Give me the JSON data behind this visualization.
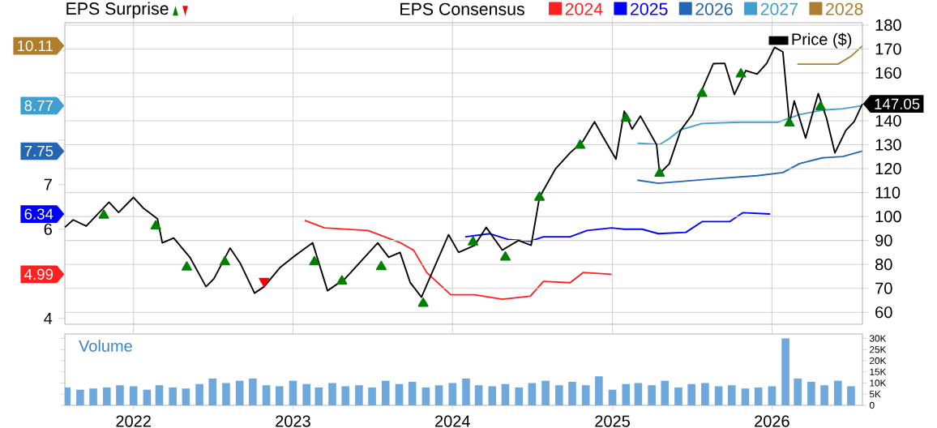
{
  "chart_data": [
    {
      "type": "line",
      "legend_title": "EPS Consensus",
      "annotations": [
        "EPS Surprise",
        "10.11",
        "8.77",
        "7.75",
        "6.34",
        "4.99"
      ],
      "xlim": [
        "2021-07-28",
        "2026-07-27"
      ],
      "xticks": [
        "2022",
        "2023",
        "2024",
        "2025",
        "2026"
      ],
      "ylim": [
        3.87,
        10.63
      ],
      "yticks": [
        4,
        {
          "value": 5,
          "label": null
        },
        6,
        7,
        {
          "value": 8,
          "label": null
        },
        {
          "value": 9,
          "label": null
        },
        {
          "value": 10,
          "label": null
        }
      ],
      "y2lim": [
        55,
        181
      ],
      "y2ticks": [
        60,
        70,
        80,
        90,
        100,
        110,
        120,
        130,
        140,
        {
          "value": 150,
          "label": null
        },
        160,
        170,
        180
      ],
      "grid": true,
      "legend": "top",
      "tick_labels": "y",
      "series": [
        {
          "name": "2024",
          "color": "#ff2020",
          "x": [
            "2023-01-28",
            "2023-03-14",
            "2023-06-22",
            "2023-09-03",
            "2023-10-04",
            "2023-11-03",
            "2023-12-28",
            "2024-02-21",
            "2024-04-24",
            "2024-06-27",
            "2024-07-27",
            "2024-09-26",
            "2024-10-26",
            "2024-12-30"
          ],
          "values": [
            6.2,
            6.03,
            5.97,
            5.7,
            5.53,
            5.03,
            4.53,
            4.53,
            4.43,
            4.5,
            4.83,
            4.8,
            5.03,
            4.99
          ]
        },
        {
          "name": "2025",
          "color": "#0000ff",
          "x": [
            "2024-01-30",
            "2024-03-27",
            "2024-05-07",
            "2024-06-27",
            "2024-07-27",
            "2024-09-26",
            "2024-11-04",
            "2024-12-30",
            "2025-01-28",
            "2025-03-10",
            "2025-04-16",
            "2025-06-18",
            "2025-07-25",
            "2025-09-26",
            "2025-10-26",
            "2025-12-28"
          ],
          "values": [
            5.83,
            5.9,
            5.77,
            5.73,
            5.83,
            5.83,
            5.97,
            6.03,
            6.0,
            6.0,
            5.9,
            5.93,
            6.17,
            6.17,
            6.37,
            6.34
          ]
        },
        {
          "name": "2026",
          "color": "#2466b4",
          "x": [
            "2025-02-27",
            "2025-04-16",
            "2025-06-06",
            "2025-08-20",
            "2025-11-28",
            "2026-01-26",
            "2026-03-05",
            "2026-04-26",
            "2026-06-12",
            "2026-07-27"
          ],
          "values": [
            7.1,
            7.03,
            7.07,
            7.13,
            7.2,
            7.27,
            7.47,
            7.6,
            7.63,
            7.75
          ]
        },
        {
          "name": "2027",
          "color": "#3fa0d0",
          "x": [
            "2025-02-27",
            "2025-04-19",
            "2025-05-11",
            "2025-06-06",
            "2025-07-25",
            "2025-10-22",
            "2026-01-15",
            "2026-03-05",
            "2026-04-26",
            "2026-06-12",
            "2026-07-27"
          ],
          "values": [
            7.93,
            7.9,
            8.03,
            8.23,
            8.37,
            8.4,
            8.4,
            8.57,
            8.67,
            8.7,
            8.77
          ]
        },
        {
          "name": "2028",
          "color": "#b07d2c",
          "x": [
            "2026-02-28",
            "2026-06-01",
            "2026-06-30",
            "2026-07-27"
          ],
          "values": [
            9.7,
            9.7,
            9.87,
            10.11
          ]
        },
        {
          "name": "Price ($)",
          "color": "#000000",
          "axis": "y2",
          "x": [
            "2021-07-28",
            "2021-08-16",
            "2021-09-15",
            "2021-11-06",
            "2021-11-28",
            "2022-01-01",
            "2022-01-23",
            "2022-02-25",
            "2022-03-08",
            "2022-04-03",
            "2022-05-10",
            "2022-06-16",
            "2022-07-04",
            "2022-08-10",
            "2022-09-02",
            "2022-10-05",
            "2022-10-27",
            "2022-12-03",
            "2023-01-06",
            "2023-02-15",
            "2023-03-21",
            "2023-04-30",
            "2023-07-14",
            "2023-08-08",
            "2023-09-03",
            "2023-09-26",
            "2023-10-22",
            "2023-11-16",
            "2023-12-23",
            "2024-01-15",
            "2024-02-21",
            "2024-03-18",
            "2024-04-24",
            "2024-05-31",
            "2024-06-29",
            "2024-07-18",
            "2024-08-24",
            "2024-09-26",
            "2024-10-26",
            "2024-11-21",
            "2024-12-10",
            "2025-01-09",
            "2025-01-28",
            "2025-02-15",
            "2025-03-06",
            "2025-04-12",
            "2025-04-19",
            "2025-05-11",
            "2025-06-06",
            "2025-07-03",
            "2025-07-25",
            "2025-08-20",
            "2025-09-15",
            "2025-10-07",
            "2025-11-02",
            "2025-11-28",
            "2025-12-20",
            "2026-01-07",
            "2026-01-26",
            "2026-02-10",
            "2026-02-21",
            "2026-03-19",
            "2026-04-17",
            "2026-05-06",
            "2026-05-25",
            "2026-06-19",
            "2026-07-08",
            "2026-07-27"
          ],
          "values": [
            95.5,
            98.6,
            96,
            106,
            101.7,
            108,
            103.6,
            99,
            89,
            91,
            83,
            70.7,
            74,
            86.8,
            80.6,
            68,
            70.7,
            78.8,
            83.7,
            89,
            69,
            74,
            89,
            83,
            85,
            72.5,
            66.3,
            76.9,
            92.4,
            85,
            88,
            95.5,
            86,
            90,
            88,
            108,
            120,
            126.6,
            131.6,
            139.6,
            133.4,
            124,
            144,
            136.5,
            142,
            130,
            118,
            122,
            136,
            142.7,
            153,
            163.9,
            164,
            151,
            161,
            159.5,
            164,
            170.7,
            168.8,
            139,
            148.3,
            132.8,
            151.4,
            141,
            126.6,
            136,
            139.6,
            147.05
          ],
          "value_labels": [
            null,
            null,
            null,
            null,
            null,
            null,
            null,
            null,
            null,
            null,
            null,
            null,
            null,
            null,
            null,
            null,
            null,
            null,
            null,
            null,
            null,
            null,
            null,
            null,
            null,
            null,
            null,
            null,
            null,
            null,
            null,
            null,
            null,
            null,
            null,
            null,
            null,
            null,
            null,
            null,
            null,
            null,
            null,
            null,
            null,
            null,
            null,
            null,
            null,
            null,
            null,
            null,
            null,
            null,
            null,
            null,
            null,
            null,
            null,
            null,
            null,
            null,
            null,
            null,
            null,
            null,
            null,
            "147.05"
          ]
        },
        {
          "type": "scatter",
          "marker": "triangle",
          "color": "#008000",
          "axis": "y2",
          "x": [
            "2021-10-25",
            "2022-02-21",
            "2022-05-03",
            "2022-07-29",
            "2023-02-19",
            "2023-04-23",
            "2023-07-22",
            "2023-10-26",
            "2024-02-17",
            "2024-05-01",
            "2024-07-18",
            "2024-10-19",
            "2025-02-01",
            "2025-04-19",
            "2025-07-25",
            "2025-10-22",
            "2026-02-10",
            "2026-04-22"
          ],
          "values": [
            100.5,
            96,
            78.8,
            81,
            81,
            73,
            79,
            63.7,
            89.3,
            83,
            108,
            129.7,
            141,
            118,
            151.4,
            159.5,
            139,
            145.8
          ]
        },
        {
          "type": "scatter",
          "marker": "triangle",
          "color": "#ff0000",
          "axis": "y2",
          "x": [
            "2022-10-27"
          ],
          "values": [
            73
          ]
        }
      ]
    },
    {
      "type": "bar",
      "annotations": [
        "Volume"
      ],
      "color": "#6fa8dc",
      "xlim": [
        "2021-07-28",
        "2026-07-27"
      ],
      "xticks": [
        "2022",
        "2023",
        "2024",
        "2025",
        "2026"
      ],
      "ylim": [
        0,
        32000
      ],
      "yticks": [
        0,
        {
          "value": 5000,
          "label": "5K"
        },
        {
          "value": 10000,
          "label": "10K"
        },
        {
          "value": 15000,
          "label": "15K"
        },
        {
          "value": 20000,
          "label": "20K"
        },
        {
          "value": 25000,
          "label": "25K"
        },
        {
          "value": 30000,
          "label": "30K"
        }
      ],
      "x": [
        "2021-08",
        "2021-09",
        "2021-10",
        "2021-11",
        "2021-12",
        "2022-01",
        "2022-02",
        "2022-03",
        "2022-04",
        "2022-05",
        "2022-06",
        "2022-07",
        "2022-08",
        "2022-09",
        "2022-10",
        "2022-11",
        "2022-12",
        "2023-01",
        "2023-02",
        "2023-03",
        "2023-04",
        "2023-05",
        "2023-06",
        "2023-07",
        "2023-08",
        "2023-09",
        "2023-10",
        "2023-11",
        "2023-12",
        "2024-01",
        "2024-02",
        "2024-03",
        "2024-04",
        "2024-05",
        "2024-06",
        "2024-07",
        "2024-08",
        "2024-09",
        "2024-10",
        "2024-11",
        "2024-12",
        "2025-01",
        "2025-02",
        "2025-03",
        "2025-04",
        "2025-05",
        "2025-06",
        "2025-07",
        "2025-08",
        "2025-09",
        "2025-10",
        "2025-11",
        "2025-12",
        "2026-01",
        "2026-02",
        "2026-03",
        "2026-04",
        "2026-05",
        "2026-06",
        "2026-07"
      ],
      "values": [
        8000,
        7000,
        7500,
        8000,
        9000,
        8500,
        7000,
        9000,
        8000,
        7500,
        9500,
        12000,
        10000,
        11000,
        12000,
        9000,
        8500,
        11000,
        9500,
        8000,
        10000,
        8500,
        9000,
        8000,
        11000,
        9500,
        10500,
        8000,
        9000,
        10000,
        12000,
        9000,
        8500,
        9500,
        8000,
        10000,
        11000,
        9000,
        10500,
        9000,
        13000,
        7000,
        9500,
        10000,
        9000,
        11000,
        8000,
        9500,
        10000,
        8500,
        9000,
        7500,
        8000,
        8500,
        30000,
        12000,
        10500,
        9000,
        11000,
        8500
      ]
    }
  ]
}
